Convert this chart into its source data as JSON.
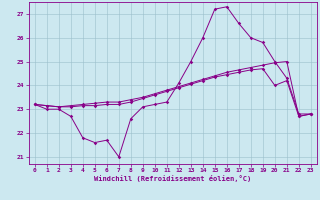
{
  "xlabel": "Windchill (Refroidissement éolien,°C)",
  "bg_color": "#cce8f0",
  "grid_color": "#9bbfcc",
  "line_color": "#880088",
  "xlim": [
    -0.5,
    23.5
  ],
  "ylim": [
    20.7,
    27.5
  ],
  "yticks": [
    21,
    22,
    23,
    24,
    25,
    26,
    27
  ],
  "xticks": [
    0,
    1,
    2,
    3,
    4,
    5,
    6,
    7,
    8,
    9,
    10,
    11,
    12,
    13,
    14,
    15,
    16,
    17,
    18,
    19,
    20,
    21,
    22,
    23
  ],
  "line1_x": [
    0,
    1,
    2,
    3,
    4,
    5,
    6,
    7,
    8,
    9,
    10,
    11,
    12,
    13,
    14,
    15,
    16,
    17,
    18,
    19,
    20,
    21,
    22,
    23
  ],
  "line1_y": [
    23.2,
    23.0,
    23.0,
    22.7,
    21.8,
    21.6,
    21.7,
    21.0,
    22.6,
    23.1,
    23.2,
    23.3,
    24.1,
    25.0,
    26.0,
    27.2,
    27.3,
    26.6,
    26.0,
    25.8,
    25.0,
    24.3,
    22.8,
    22.8
  ],
  "line2_x": [
    0,
    1,
    2,
    3,
    4,
    5,
    6,
    7,
    8,
    9,
    10,
    11,
    12,
    13,
    14,
    15,
    16,
    17,
    18,
    19,
    20,
    21,
    22,
    23
  ],
  "line2_y": [
    23.2,
    23.15,
    23.1,
    23.15,
    23.2,
    23.25,
    23.3,
    23.3,
    23.4,
    23.5,
    23.65,
    23.8,
    23.95,
    24.1,
    24.25,
    24.4,
    24.55,
    24.65,
    24.75,
    24.85,
    24.95,
    25.0,
    22.7,
    22.8
  ],
  "line3_x": [
    0,
    1,
    2,
    3,
    4,
    5,
    6,
    7,
    8,
    9,
    10,
    11,
    12,
    13,
    14,
    15,
    16,
    17,
    18,
    19,
    20,
    21,
    22,
    23
  ],
  "line3_y": [
    23.2,
    23.15,
    23.1,
    23.1,
    23.15,
    23.15,
    23.2,
    23.2,
    23.3,
    23.45,
    23.6,
    23.75,
    23.9,
    24.05,
    24.2,
    24.35,
    24.45,
    24.55,
    24.65,
    24.7,
    24.0,
    24.2,
    22.7,
    22.8
  ]
}
